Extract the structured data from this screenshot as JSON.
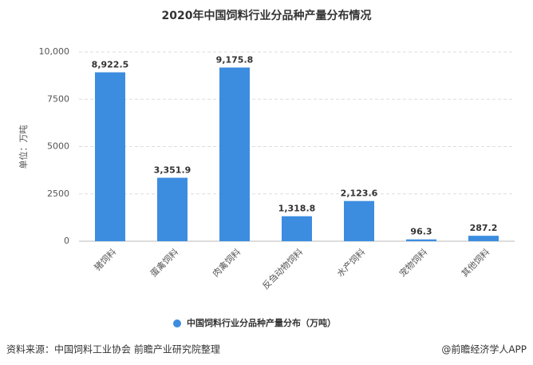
{
  "chart_data": {
    "type": "bar",
    "title": "2020年中国饲料行业分品种产量分布情况",
    "y_label": "单位：万吨",
    "categories": [
      "猪饲料",
      "蛋禽饲料",
      "肉禽饲料",
      "反刍动物饲料",
      "水产饲料",
      "宠物饲料",
      "其他饲料"
    ],
    "series": [
      {
        "name": "中国饲料行业分品种产量分布（万吨）",
        "color": "#3c8de0",
        "values": [
          8922.5,
          3351.9,
          9175.8,
          1318.8,
          2123.6,
          96.3,
          287.2
        ],
        "value_labels": [
          "8,922.5",
          "3,351.9",
          "9,175.8",
          "1,318.8",
          "2,123.6",
          "96.3",
          "287.2"
        ]
      }
    ],
    "ylim": [
      0,
      10000
    ],
    "yticks": [
      0,
      2500,
      5000,
      7500,
      {
        "value": 10000,
        "label": "10,000"
      }
    ],
    "grid": true,
    "source": "资料来源：中国饲料工业协会 前瞻产业研究院整理",
    "credit": "@前瞻经济学人APP"
  }
}
